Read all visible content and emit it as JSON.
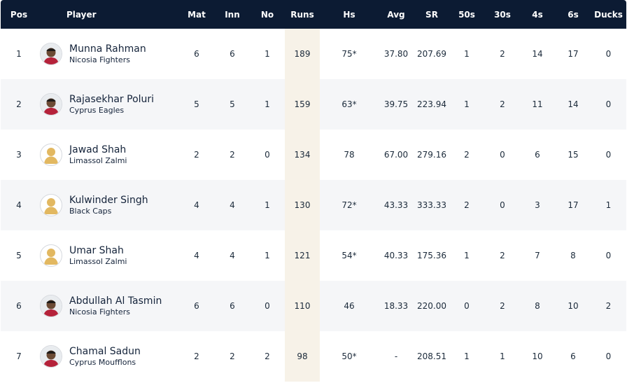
{
  "columns": {
    "pos": "Pos",
    "player": "Player",
    "mat": "Mat",
    "inn": "Inn",
    "no": "No",
    "runs": "Runs",
    "hs": "Hs",
    "avg": "Avg",
    "sr": "SR",
    "fifties": "50s",
    "thirties": "30s",
    "fours": "4s",
    "sixes": "6s",
    "ducks": "Ducks"
  },
  "rows": [
    {
      "pos": "1",
      "name": "Munna Rahman",
      "team": "Nicosia Fighters",
      "mat": "6",
      "inn": "6",
      "no": "1",
      "runs": "189",
      "hs": "75*",
      "avg": "37.80",
      "sr": "207.69",
      "fifties": "1",
      "thirties": "2",
      "fours": "14",
      "sixes": "17",
      "ducks": "0",
      "avatar": "player-photo"
    },
    {
      "pos": "2",
      "name": "Rajasekhar Poluri",
      "team": "Cyprus Eagles",
      "mat": "5",
      "inn": "5",
      "no": "1",
      "runs": "159",
      "hs": "63*",
      "avg": "39.75",
      "sr": "223.94",
      "fifties": "1",
      "thirties": "2",
      "fours": "11",
      "sixes": "14",
      "ducks": "0",
      "avatar": "player-photo"
    },
    {
      "pos": "3",
      "name": "Jawad Shah",
      "team": "Limassol Zalmi",
      "mat": "2",
      "inn": "2",
      "no": "0",
      "runs": "134",
      "hs": "78",
      "avg": "67.00",
      "sr": "279.16",
      "fifties": "2",
      "thirties": "0",
      "fours": "6",
      "sixes": "15",
      "ducks": "0",
      "avatar": "placeholder-silhouette"
    },
    {
      "pos": "4",
      "name": "Kulwinder Singh",
      "team": "Black Caps",
      "mat": "4",
      "inn": "4",
      "no": "1",
      "runs": "130",
      "hs": "72*",
      "avg": "43.33",
      "sr": "333.33",
      "fifties": "2",
      "thirties": "0",
      "fours": "3",
      "sixes": "17",
      "ducks": "1",
      "avatar": "placeholder-silhouette"
    },
    {
      "pos": "5",
      "name": "Umar Shah",
      "team": "Limassol Zalmi",
      "mat": "4",
      "inn": "4",
      "no": "1",
      "runs": "121",
      "hs": "54*",
      "avg": "40.33",
      "sr": "175.36",
      "fifties": "1",
      "thirties": "2",
      "fours": "7",
      "sixes": "8",
      "ducks": "0",
      "avatar": "placeholder-silhouette"
    },
    {
      "pos": "6",
      "name": "Abdullah Al Tasmin",
      "team": "Nicosia Fighters",
      "mat": "6",
      "inn": "6",
      "no": "0",
      "runs": "110",
      "hs": "46",
      "avg": "18.33",
      "sr": "220.00",
      "fifties": "0",
      "thirties": "2",
      "fours": "8",
      "sixes": "10",
      "ducks": "2",
      "avatar": "player-photo"
    },
    {
      "pos": "7",
      "name": "Chamal Sadun",
      "team": "Cyprus Moufflons",
      "mat": "2",
      "inn": "2",
      "no": "2",
      "runs": "98",
      "hs": "50*",
      "avg": "-",
      "sr": "208.51",
      "fifties": "1",
      "thirties": "1",
      "fours": "10",
      "sixes": "6",
      "ducks": "0",
      "avatar": "player-photo"
    }
  ],
  "colors": {
    "header_bg": "#0c1b33",
    "runs_highlight": "#f7f2e8",
    "row_alt": "#f5f6f8",
    "silhouette": "#e2b861"
  }
}
